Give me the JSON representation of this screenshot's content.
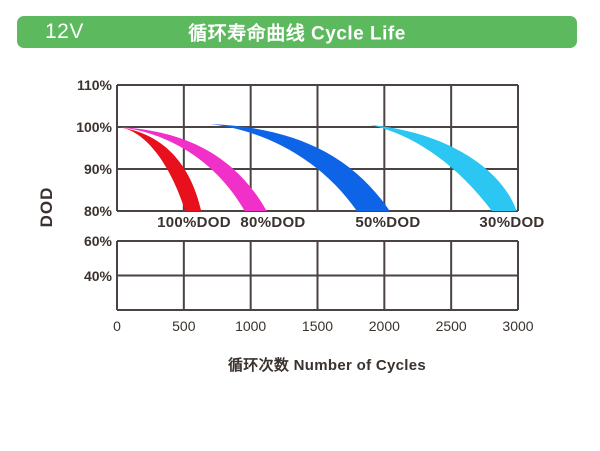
{
  "header": {
    "voltage": "12V",
    "title": "循环寿命曲线 Cycle Life",
    "bg_color": "#5cb95e",
    "text_color": "#ffffff"
  },
  "colors": {
    "grid": "#4b4242",
    "text": "#3a322e",
    "background": "#ffffff"
  },
  "chart_data": {
    "type": "area",
    "title": "循环寿命曲线 Cycle Life",
    "xlabel": "循环次数 Number of Cycles",
    "ylabel": "DOD",
    "grid": true,
    "x_range": [
      0,
      3000
    ],
    "x_ticks": [
      0,
      500,
      1000,
      1500,
      2000,
      2500,
      3000
    ],
    "upper_panel": {
      "y_tick_labels": [
        "110%",
        "100%",
        "90%",
        "80%"
      ],
      "y_tick_values": [
        110,
        100,
        90,
        80
      ],
      "ylim": [
        80,
        110
      ]
    },
    "lower_panel": {
      "y_tick_labels": [
        "60%",
        "40%"
      ],
      "y_tick_values": [
        60,
        40
      ],
      "ylim": [
        20,
        60
      ]
    },
    "series": [
      {
        "name": "100%DOD",
        "color": "#e8101c",
        "label_at_cycles": 576,
        "approx_cycles_at_capacity": {
          "100%": 0,
          "90%": 430,
          "80%": 570
        },
        "band": {
          "tip": [
            0,
            100
          ],
          "lower_c1": [
            210,
            99.5
          ],
          "lower_c2": [
            400,
            91
          ],
          "lower_end": [
            510,
            80
          ],
          "base_end": [
            630,
            80
          ],
          "upper_c1": [
            545,
            92
          ],
          "upper_c2": [
            320,
            98.8
          ]
        }
      },
      {
        "name": "80%DOD",
        "color": "#f030c8",
        "label_at_cycles": 1167,
        "approx_cycles_at_capacity": {
          "100%": 50,
          "90%": 820,
          "80%": 1040
        },
        "band": {
          "tip": [
            10,
            100
          ],
          "lower_c1": [
            360,
            98.8
          ],
          "lower_c2": [
            730,
            92.5
          ],
          "lower_end": [
            955,
            80
          ],
          "base_end": [
            1120,
            80
          ],
          "upper_c1": [
            880,
            93.5
          ],
          "upper_c2": [
            500,
            99.2
          ]
        }
      },
      {
        "name": "50%DOD",
        "color": "#0e64e6",
        "label_at_cycles": 2027,
        "approx_cycles_at_capacity": {
          "100%": 700,
          "90%": 1620,
          "80%": 1920
        },
        "band": {
          "tip": [
            700,
            100.7
          ],
          "lower_c1": [
            1100,
            99.2
          ],
          "lower_c2": [
            1520,
            92.5
          ],
          "lower_end": [
            1795,
            80
          ],
          "base_end": [
            2040,
            80
          ],
          "upper_c1": [
            1745,
            94
          ],
          "upper_c2": [
            1290,
            100
          ]
        }
      },
      {
        "name": "30%DOD",
        "color": "#2bc6f2",
        "label_at_cycles": 2955,
        "approx_cycles_at_capacity": {
          "100%": 1890,
          "90%": 2670,
          "80%": 2900
        },
        "band": {
          "tip": [
            1890,
            100.5
          ],
          "lower_c1": [
            2190,
            98.5
          ],
          "lower_c2": [
            2520,
            92
          ],
          "lower_end": [
            2805,
            80
          ],
          "base_end": [
            2990,
            80
          ],
          "upper_c1": [
            2865,
            91
          ],
          "upper_c2": [
            2420,
            99
          ]
        }
      }
    ]
  }
}
